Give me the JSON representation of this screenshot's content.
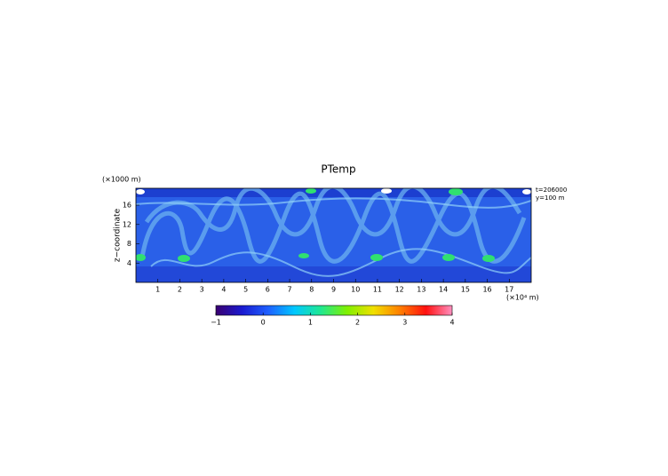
{
  "chart_data": {
    "type": "heatmap",
    "title": "PTemp",
    "ylabel": "z−coordinate",
    "yunit": "(×1000 m)",
    "xunit": "(×10⁴ m)",
    "annotations": [
      "t=206000",
      "y=100 m"
    ],
    "xlim": [
      0,
      18
    ],
    "xticks": [
      1,
      2,
      3,
      4,
      5,
      6,
      7,
      8,
      9,
      10,
      11,
      12,
      13,
      14,
      15,
      16,
      17
    ],
    "ylim": [
      0,
      19.5
    ],
    "yticks": [
      4,
      8,
      12,
      16
    ],
    "clim": [
      -1,
      4
    ],
    "cticks": [
      {
        "value": -1,
        "label": "−1"
      },
      0,
      1,
      2,
      3,
      4
    ],
    "colormap": [
      "#3a0070",
      "#1a1ad0",
      "#1e60ff",
      "#00c8ff",
      "#20e890",
      "#80f000",
      "#f0e000",
      "#ff8000",
      "#ff1010",
      "#ff90c0"
    ]
  }
}
